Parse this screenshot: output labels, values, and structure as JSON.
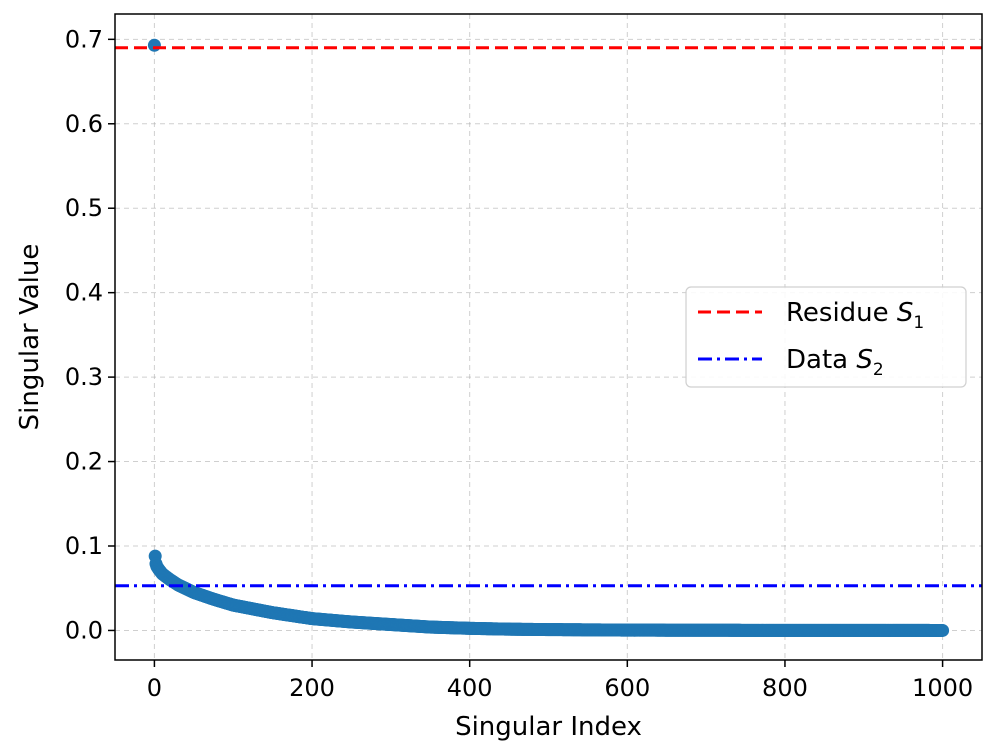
{
  "chart_data": {
    "type": "scatter",
    "xlabel": "Singular Index",
    "ylabel": "Singular Value",
    "xlim": [
      -50,
      1050
    ],
    "ylim": [
      -0.035,
      0.73
    ],
    "xticks": [
      0,
      200,
      400,
      600,
      800,
      1000
    ],
    "yticks": [
      0.0,
      0.1,
      0.2,
      0.3,
      0.4,
      0.5,
      0.6,
      0.7
    ],
    "grid": true,
    "legend_position": "center-right",
    "series": [
      {
        "kind": "scatter",
        "color": "#1f77b4",
        "x_start": 0,
        "x_end": 1000,
        "points": [
          [
            0,
            0.693
          ],
          [
            1,
            0.088
          ],
          [
            2,
            0.079
          ],
          [
            3,
            0.076
          ],
          [
            5,
            0.073
          ],
          [
            10,
            0.067
          ],
          [
            20,
            0.06
          ],
          [
            30,
            0.054
          ],
          [
            50,
            0.045
          ],
          [
            75,
            0.037
          ],
          [
            100,
            0.03
          ],
          [
            150,
            0.021
          ],
          [
            200,
            0.014
          ],
          [
            250,
            0.01
          ],
          [
            300,
            0.007
          ],
          [
            350,
            0.004
          ],
          [
            400,
            0.0025
          ],
          [
            450,
            0.0015
          ],
          [
            500,
            0.001
          ],
          [
            600,
            0.0004
          ],
          [
            700,
            0.0002
          ],
          [
            800,
            0.0001
          ],
          [
            900,
            5e-05
          ],
          [
            1000,
            0.0
          ]
        ]
      },
      {
        "kind": "hline",
        "name": "Residue S",
        "subscript": "1",
        "y": 0.69,
        "color": "#ff0000",
        "dash": "dashed"
      },
      {
        "kind": "hline",
        "name": "Data S",
        "subscript": "2",
        "y": 0.053,
        "color": "#0000ff",
        "dash": "dashdot"
      }
    ]
  }
}
